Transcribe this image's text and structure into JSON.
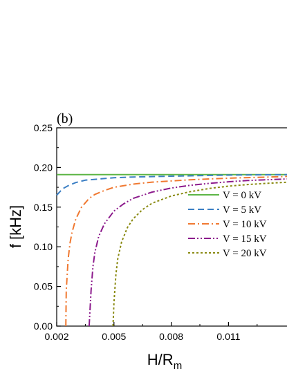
{
  "chart_data": {
    "type": "line",
    "panel_label": "(b)",
    "xlabel": "H/R",
    "xlabel_sub": "m",
    "ylabel": "f [kHz]",
    "xlim": [
      0.002,
      0.0145
    ],
    "ylim": [
      0.0,
      0.25
    ],
    "x_ticks": [
      "0.002",
      "0.005",
      "0.008",
      "0.011"
    ],
    "x_tick_values": [
      0.002,
      0.005,
      0.008,
      0.011
    ],
    "y_ticks": [
      "0.00",
      "0.05",
      "0.10",
      "0.15",
      "0.20",
      "0.25"
    ],
    "y_tick_values": [
      0.0,
      0.05,
      0.1,
      0.15,
      0.2,
      0.25
    ],
    "grid": false,
    "legend_position": "bottom-right",
    "series": [
      {
        "name": "V = 0 kV",
        "color": "#5cb545",
        "dash": "solid",
        "x": [
          0.002,
          0.004,
          0.006,
          0.008,
          0.01,
          0.012,
          0.0145
        ],
        "y": [
          0.191,
          0.191,
          0.191,
          0.191,
          0.191,
          0.191,
          0.191
        ]
      },
      {
        "name": "V = 5 kV",
        "color": "#3b7fc4",
        "dash": "dash",
        "x": [
          0.002,
          0.0023,
          0.0026,
          0.003,
          0.0035,
          0.004,
          0.005,
          0.006,
          0.007,
          0.008,
          0.009,
          0.01,
          0.011,
          0.012,
          0.013,
          0.0145
        ],
        "y": [
          0.165,
          0.173,
          0.177,
          0.181,
          0.184,
          0.185,
          0.187,
          0.188,
          0.1885,
          0.189,
          0.1895,
          0.19,
          0.1903,
          0.1906,
          0.1908,
          0.191
        ]
      },
      {
        "name": "V = 10 kV",
        "color": "#f07830",
        "dash": "dashdot",
        "x": [
          0.00248,
          0.0025,
          0.0026,
          0.0027,
          0.0028,
          0.003,
          0.0033,
          0.0037,
          0.004,
          0.0045,
          0.005,
          0.006,
          0.007,
          0.008,
          0.009,
          0.01,
          0.011,
          0.012,
          0.013,
          0.0145
        ],
        "y": [
          0.0,
          0.045,
          0.085,
          0.105,
          0.118,
          0.135,
          0.15,
          0.161,
          0.166,
          0.171,
          0.175,
          0.179,
          0.1815,
          0.183,
          0.1845,
          0.1855,
          0.1865,
          0.1872,
          0.1878,
          0.189
        ]
      },
      {
        "name": "V = 15 kV",
        "color": "#8c1a8c",
        "dash": "dashdotdot",
        "x": [
          0.0037,
          0.0038,
          0.0039,
          0.004,
          0.0042,
          0.0045,
          0.005,
          0.0055,
          0.006,
          0.007,
          0.008,
          0.009,
          0.01,
          0.011,
          0.012,
          0.013,
          0.0145
        ],
        "y": [
          0.0,
          0.045,
          0.075,
          0.093,
          0.113,
          0.129,
          0.145,
          0.154,
          0.161,
          0.169,
          0.174,
          0.1775,
          0.18,
          0.182,
          0.1835,
          0.1845,
          0.186
        ]
      },
      {
        "name": "V = 20 kV",
        "color": "#8a8a12",
        "dash": "dot",
        "x": [
          0.00495,
          0.005,
          0.0051,
          0.0052,
          0.0054,
          0.0057,
          0.006,
          0.0065,
          0.007,
          0.008,
          0.009,
          0.01,
          0.011,
          0.012,
          0.013,
          0.0145
        ],
        "y": [
          0.0,
          0.03,
          0.065,
          0.085,
          0.106,
          0.124,
          0.135,
          0.147,
          0.155,
          0.164,
          0.1695,
          0.1735,
          0.1765,
          0.1785,
          0.18,
          0.182
        ]
      }
    ]
  }
}
